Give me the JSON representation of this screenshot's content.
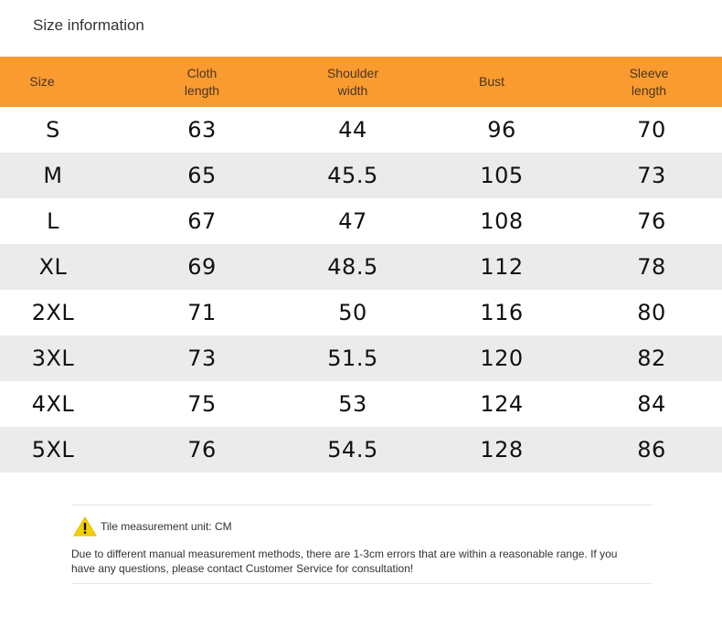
{
  "title": "Size information",
  "table": {
    "headers": [
      "Size",
      "Cloth\nlength",
      "Shoulder\nwidth",
      "Bust",
      "Sleeve\nlength"
    ],
    "rows": [
      [
        "S",
        "63",
        "44",
        "96",
        "70"
      ],
      [
        "M",
        "65",
        "45.5",
        "105",
        "73"
      ],
      [
        "L",
        "67",
        "47",
        "108",
        "76"
      ],
      [
        "XL",
        "69",
        "48.5",
        "112",
        "78"
      ],
      [
        "2XL",
        "71",
        "50",
        "116",
        "80"
      ],
      [
        "3XL",
        "73",
        "51.5",
        "120",
        "82"
      ],
      [
        "4XL",
        "75",
        "53",
        "124",
        "84"
      ],
      [
        "5XL",
        "76",
        "54.5",
        "128",
        "86"
      ]
    ]
  },
  "note": {
    "icon": "warning-icon",
    "unit_label": "Tile measurement unit: CM",
    "disclaimer": "Due to different manual measurement methods, there are 1-3cm errors that are within a reasonable range. If you have any questions, please contact Customer Service for consultation!"
  },
  "colors": {
    "header_bg": "#f99b2f",
    "alt_row_bg": "#ebebeb",
    "warning_yellow": "#f5d000"
  }
}
